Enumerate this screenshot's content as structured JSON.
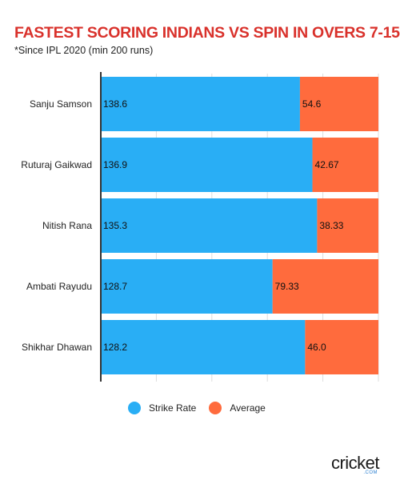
{
  "title": "FASTEST SCORING INDIANS VS SPIN IN OVERS 7-15",
  "subtitle": "*Since IPL 2020 (min 200 runs)",
  "colors": {
    "strike_rate": "#29aef5",
    "average": "#ff6b3d",
    "title": "#d9312b"
  },
  "legend": [
    {
      "label": "Strike Rate",
      "color": "#29aef5"
    },
    {
      "label": "Average",
      "color": "#ff6b3d"
    }
  ],
  "brand": {
    "name": "cricket",
    "sub": ".COM"
  },
  "chart_data": {
    "type": "bar",
    "orientation": "horizontal",
    "stacked": "percent",
    "categories": [
      "Sanju Samson",
      "Ruturaj Gaikwad",
      "Nitish Rana",
      "Ambati Rayudu",
      "Shikhar Dhawan"
    ],
    "series": [
      {
        "name": "Strike Rate",
        "values": [
          138.6,
          136.9,
          135.3,
          128.7,
          128.2
        ]
      },
      {
        "name": "Average",
        "values": [
          54.6,
          42.67,
          38.33,
          79.33,
          46.0
        ]
      }
    ],
    "value_labels": [
      [
        "138.6",
        "136.9",
        "135.3",
        "128.7",
        "128.2"
      ],
      [
        "54.6",
        "42.67",
        "38.33",
        "79.33",
        "46.0"
      ]
    ],
    "legend_position": "bottom",
    "grid": true
  }
}
